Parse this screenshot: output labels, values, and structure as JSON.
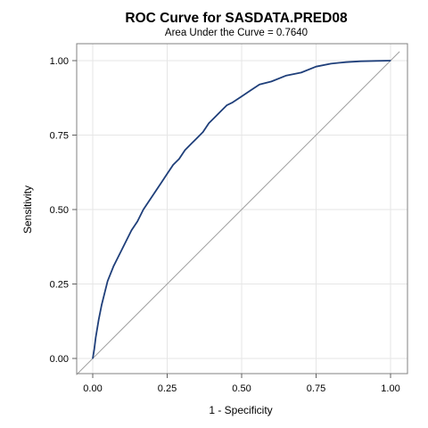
{
  "chart_data": {
    "type": "line",
    "title": "ROC Curve for SASDATA.PRED08",
    "subtitle": "Area Under the Curve = 0.7640",
    "xlabel": "1 - Specificity",
    "ylabel": "Sensitivity",
    "xlim": [
      0,
      1
    ],
    "ylim": [
      0,
      1
    ],
    "xticks": [
      "0.00",
      "0.25",
      "0.50",
      "0.75",
      "1.00"
    ],
    "yticks": [
      "0.00",
      "0.25",
      "0.50",
      "0.75",
      "1.00"
    ],
    "grid": true,
    "reference_line": {
      "x": [
        0,
        1
      ],
      "y": [
        0,
        1
      ],
      "color": "#a0a0a0"
    },
    "series": [
      {
        "color": "#1f3f7a",
        "x": [
          0.0,
          0.005,
          0.01,
          0.02,
          0.03,
          0.04,
          0.05,
          0.07,
          0.09,
          0.11,
          0.13,
          0.15,
          0.17,
          0.19,
          0.21,
          0.23,
          0.25,
          0.27,
          0.29,
          0.31,
          0.33,
          0.35,
          0.37,
          0.39,
          0.41,
          0.43,
          0.45,
          0.47,
          0.5,
          0.53,
          0.56,
          0.6,
          0.65,
          0.7,
          0.75,
          0.8,
          0.85,
          0.9,
          0.95,
          1.0
        ],
        "y": [
          0.0,
          0.03,
          0.07,
          0.13,
          0.18,
          0.22,
          0.26,
          0.31,
          0.35,
          0.39,
          0.43,
          0.46,
          0.5,
          0.53,
          0.56,
          0.59,
          0.62,
          0.65,
          0.67,
          0.7,
          0.72,
          0.74,
          0.76,
          0.79,
          0.81,
          0.83,
          0.85,
          0.86,
          0.88,
          0.9,
          0.92,
          0.93,
          0.95,
          0.96,
          0.98,
          0.99,
          0.995,
          0.998,
          0.999,
          1.0
        ]
      }
    ]
  }
}
